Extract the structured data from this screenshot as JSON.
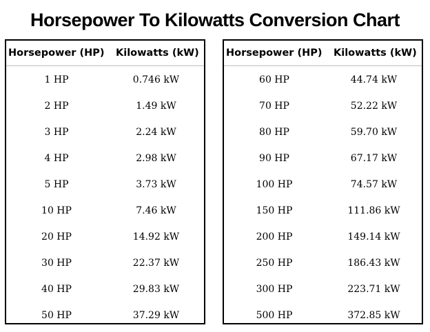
{
  "title": "Horsepower To Kilowatts Conversion Chart",
  "tables": [
    {
      "headers": [
        "Horsepower (HP)",
        "Kilowatts (kW)"
      ],
      "rows": [
        [
          "1 HP",
          "0.746 kW"
        ],
        [
          "2 HP",
          "1.49 kW"
        ],
        [
          "3 HP",
          "2.24 kW"
        ],
        [
          "4 HP",
          "2.98 kW"
        ],
        [
          "5 HP",
          "3.73 kW"
        ],
        [
          "10 HP",
          "7.46 kW"
        ],
        [
          "20 HP",
          "14.92 kW"
        ],
        [
          "30 HP",
          "22.37 kW"
        ],
        [
          "40 HP",
          "29.83 kW"
        ],
        [
          "50 HP",
          "37.29 kW"
        ]
      ]
    },
    {
      "headers": [
        "Horsepower (HP)",
        "Kilowatts (kW)"
      ],
      "rows": [
        [
          "60 HP",
          "44.74 kW"
        ],
        [
          "70 HP",
          "52.22 kW"
        ],
        [
          "80 HP",
          "59.70 kW"
        ],
        [
          "90 HP",
          "67.17 kW"
        ],
        [
          "100 HP",
          "74.57 kW"
        ],
        [
          "150 HP",
          "111.86 kW"
        ],
        [
          "200 HP",
          "149.14 kW"
        ],
        [
          "250 HP",
          "186.43 kW"
        ],
        [
          "300 HP",
          "223.71 kW"
        ],
        [
          "500 HP",
          "372.85 kW"
        ]
      ]
    }
  ]
}
